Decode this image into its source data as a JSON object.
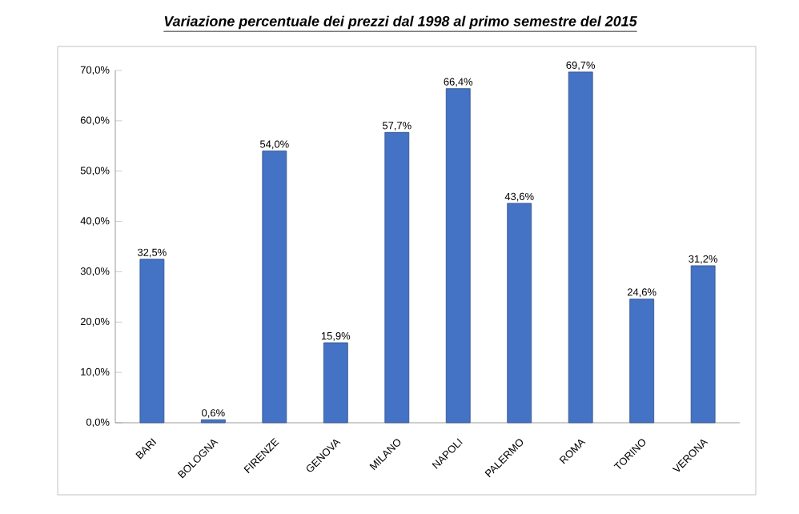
{
  "chart_data": {
    "type": "bar",
    "title": "Variazione percentuale dei prezzi dal 1998 al primo semestre del 2015",
    "categories": [
      "BARI",
      "BOLOGNA",
      "FIRENZE",
      "GENOVA",
      "MILANO",
      "NAPOLI",
      "PALERMO",
      "ROMA",
      "TORINO",
      "VERONA"
    ],
    "values": [
      32.5,
      0.6,
      54.0,
      15.9,
      57.7,
      66.4,
      43.6,
      69.7,
      24.6,
      31.2
    ],
    "value_labels": [
      "32,5%",
      "0,6%",
      "54,0%",
      "15,9%",
      "57,7%",
      "66,4%",
      "43,6%",
      "69,7%",
      "24,6%",
      "31,2%"
    ],
    "color": "#4472c4",
    "ylim": [
      0,
      70
    ],
    "yticks": [
      {
        "value": 0,
        "label": "0,0%"
      },
      {
        "value": 10,
        "label": "10,0%"
      },
      {
        "value": 20,
        "label": "20,0%"
      },
      {
        "value": 30,
        "label": "30,0%"
      },
      {
        "value": 40,
        "label": "40,0%"
      },
      {
        "value": 50,
        "label": "50,0%"
      },
      {
        "value": 60,
        "label": "60,0%"
      },
      {
        "value": 70,
        "label": "70,0%"
      }
    ],
    "grid": false
  }
}
